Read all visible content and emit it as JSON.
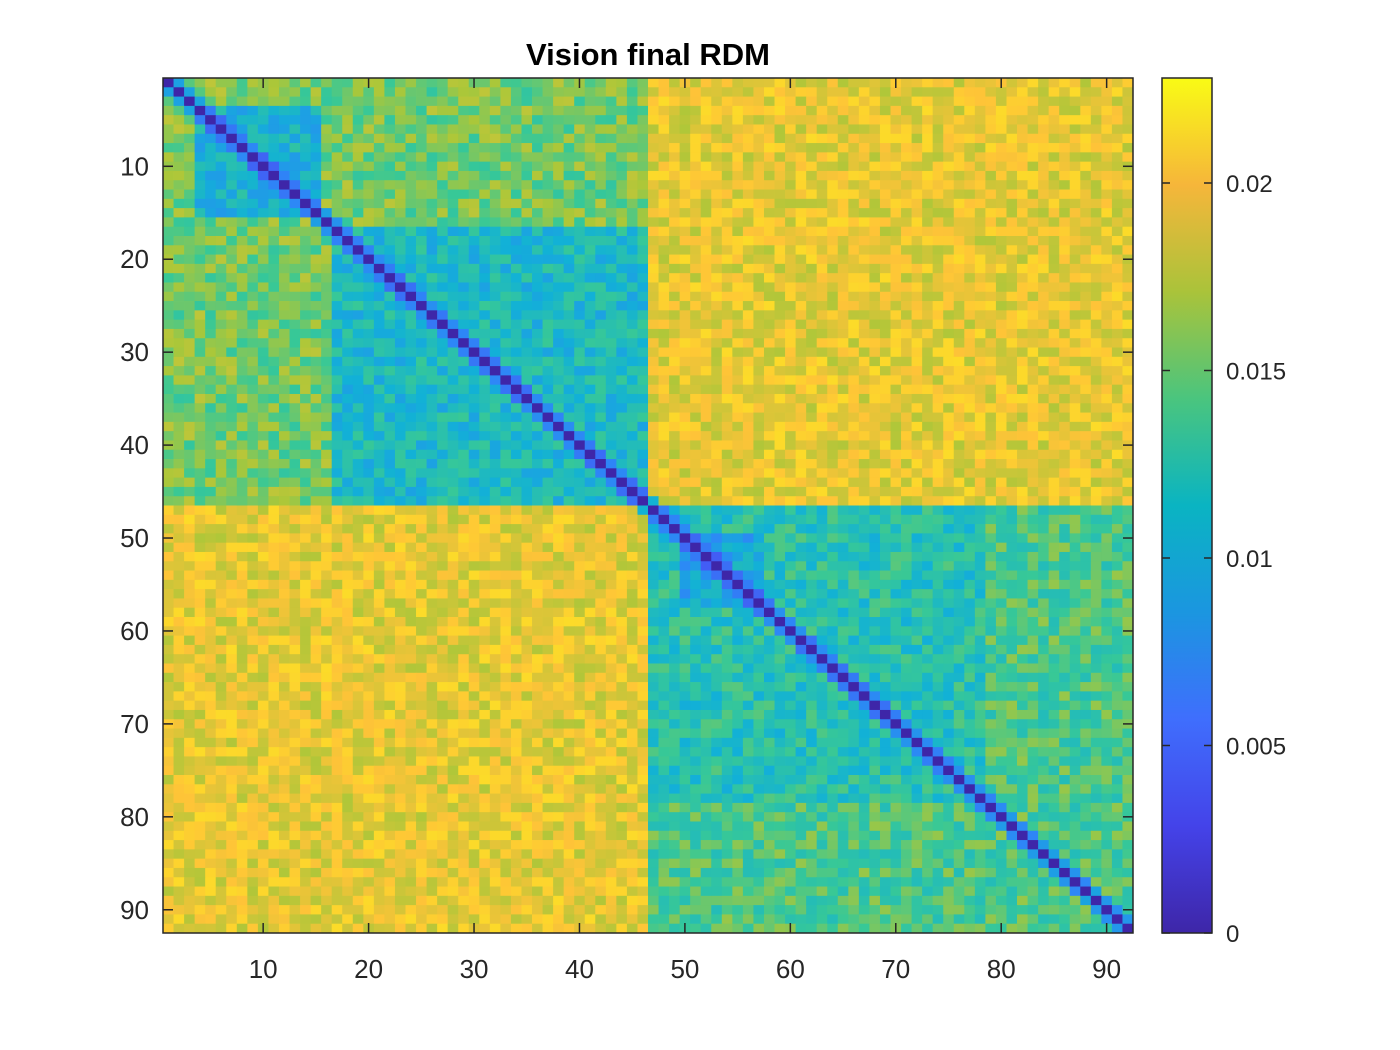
{
  "chart_data": {
    "type": "heatmap",
    "title": "Vision final RDM",
    "xlabel": "",
    "ylabel": "",
    "n": 92,
    "xlim": [
      0.5,
      92.5
    ],
    "ylim": [
      0.5,
      92.5
    ],
    "x_ticks": [
      10,
      20,
      30,
      40,
      50,
      60,
      70,
      80,
      90
    ],
    "y_ticks": [
      10,
      20,
      30,
      40,
      50,
      60,
      70,
      80,
      90
    ],
    "colormap": "parula",
    "clim": [
      0,
      0.0228
    ],
    "colorbar_ticks": [
      0,
      0.005,
      0.01,
      0.015,
      0.02
    ],
    "colorbar_tick_labels": [
      "0",
      "0.005",
      "0.01",
      "0.015",
      "0.02"
    ],
    "structure": {
      "diagonal_value": 0,
      "blocks": [
        {
          "rows": [
            1,
            46
          ],
          "cols": [
            1,
            46
          ],
          "mean": 0.0145,
          "description_rows": [
            1,
            46
          ]
        },
        {
          "rows": [
            17,
            46
          ],
          "cols": [
            17,
            46
          ],
          "mean": 0.0105
        },
        {
          "rows": [
            4,
            15
          ],
          "cols": [
            4,
            15
          ],
          "mean": 0.0105
        },
        {
          "rows": [
            47,
            92
          ],
          "cols": [
            47,
            92
          ],
          "mean": 0.0125
        },
        {
          "rows": [
            47,
            78
          ],
          "cols": [
            47,
            78
          ],
          "mean": 0.0115
        },
        {
          "rows": [
            50,
            57
          ],
          "cols": [
            50,
            57
          ],
          "mean": 0.0085
        },
        {
          "rows": [
            1,
            46
          ],
          "cols": [
            47,
            92
          ],
          "mean": 0.0185
        },
        {
          "rows": [
            47,
            92
          ],
          "cols": [
            1,
            46
          ],
          "mean": 0.0188
        }
      ]
    },
    "grid": false,
    "legend": "none"
  }
}
